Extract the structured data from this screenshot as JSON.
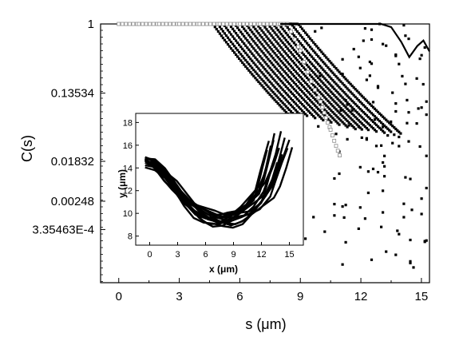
{
  "chart_data": [
    {
      "type": "scatter",
      "xlabel": "s (μm)",
      "ylabel": "C(s)",
      "x_ticks": [
        "0",
        "3",
        "6",
        "9",
        "12",
        "15"
      ],
      "y_ticks": [
        "1",
        "0.13534",
        "0.01832",
        "0.00248",
        "3.35463E-4"
      ],
      "x_tick_values": [
        0,
        3,
        6,
        9,
        12,
        15
      ],
      "y_tick_values": [
        1,
        0.13534,
        0.01832,
        0.00248,
        0.000335463
      ],
      "y_scale": "log-log",
      "xlim": [
        -0.9,
        15.4
      ],
      "ylim_lnln": [
        -0.01,
        2.62
      ],
      "grid": false,
      "series": [
        {
          "marker": "black squares",
          "curves_count": 16,
          "curves_initial_decay_rate": [
            0.04,
            0.046,
            0.052,
            0.058,
            0.064,
            0.07,
            0.077,
            0.085,
            0.093,
            0.102,
            0.112,
            0.123,
            0.135,
            0.148,
            0.162,
            0.175
          ],
          "curves_scatter_start_s": [
            14.0,
            13.5,
            13.2,
            12.8,
            12.4,
            12.1,
            11.8,
            11.4,
            11.0,
            10.6,
            10.2,
            9.8,
            9.4,
            9.1,
            8.8,
            8.6
          ]
        },
        {
          "marker": "open grey squares",
          "points": [
            [
              0.0,
              1.0
            ],
            [
              1.0,
              0.995
            ],
            [
              2.0,
              0.979
            ],
            [
              3.0,
              0.949
            ],
            [
              4.0,
              0.901
            ],
            [
              5.0,
              0.831
            ],
            [
              6.0,
              0.735
            ],
            [
              7.0,
              0.607
            ],
            [
              8.0,
              0.449
            ],
            [
              9.0,
              0.273
            ],
            [
              10.0,
              0.113
            ],
            [
              10.5,
              0.055
            ],
            [
              11.0,
              0.021
            ]
          ]
        },
        {
          "marker": "black line",
          "points": [
            [
              8.0,
              0.62
            ],
            [
              9.0,
              0.58
            ],
            [
              10.0,
              0.53
            ],
            [
              11.0,
              0.49
            ],
            [
              12.0,
              0.45
            ],
            [
              13.0,
              0.4
            ],
            [
              13.5,
              0.36
            ],
            [
              14.0,
              0.305
            ],
            [
              14.4,
              0.25
            ],
            [
              14.8,
              0.29
            ],
            [
              15.1,
              0.31
            ],
            [
              15.4,
              0.27
            ]
          ]
        }
      ]
    },
    {
      "type": "line",
      "xlabel": "x (μm)",
      "ylabel": "y (μm)",
      "x_ticks": [
        "0",
        "3",
        "6",
        "9",
        "12",
        "15"
      ],
      "y_ticks": [
        "8",
        "10",
        "12",
        "14",
        "16",
        "18"
      ],
      "x_tick_values": [
        0,
        3,
        6,
        9,
        12,
        15
      ],
      "y_tick_values": [
        8,
        10,
        12,
        14,
        16,
        18
      ],
      "xlim": [
        -1.5,
        16.5
      ],
      "ylim": [
        7.2,
        18.8
      ],
      "grid": false,
      "base_path": [
        [
          -0.5,
          14.6
        ],
        [
          0.5,
          14.2
        ],
        [
          1.5,
          13.3
        ],
        [
          2.5,
          12.3
        ],
        [
          3.5,
          11.2
        ],
        [
          4.5,
          10.3
        ],
        [
          5.5,
          9.7
        ],
        [
          6.5,
          9.4
        ],
        [
          7.5,
          9.3
        ],
        [
          8.5,
          9.5
        ],
        [
          9.5,
          9.9
        ],
        [
          10.5,
          10.6
        ],
        [
          11.5,
          11.6
        ],
        [
          12.0,
          12.8
        ],
        [
          12.5,
          14.2
        ],
        [
          13.0,
          15.8
        ]
      ],
      "traces": [
        {
          "dx": 0.0,
          "dy": 0.0,
          "stretch": 1.0
        },
        {
          "dx": 0.3,
          "dy": 0.2,
          "stretch": 1.02
        },
        {
          "dx": 0.6,
          "dy": -0.3,
          "stretch": 0.98
        },
        {
          "dx": -0.2,
          "dy": 0.3,
          "stretch": 1.05
        },
        {
          "dx": 0.9,
          "dy": 0.1,
          "stretch": 1.01
        },
        {
          "dx": 1.2,
          "dy": -0.2,
          "stretch": 0.97
        },
        {
          "dx": 0.4,
          "dy": 0.5,
          "stretch": 1.08
        },
        {
          "dx": 1.5,
          "dy": 0.3,
          "stretch": 1.03
        },
        {
          "dx": -0.4,
          "dy": -0.1,
          "stretch": 0.95
        },
        {
          "dx": 1.8,
          "dy": 0.0,
          "stretch": 1.0
        },
        {
          "dx": 2.0,
          "dy": 0.4,
          "stretch": 1.06
        },
        {
          "dx": 0.7,
          "dy": -0.5,
          "stretch": 0.93
        },
        {
          "dx": 1.1,
          "dy": 0.6,
          "stretch": 1.1
        },
        {
          "dx": 2.3,
          "dy": -0.1,
          "stretch": 0.99
        }
      ]
    }
  ]
}
